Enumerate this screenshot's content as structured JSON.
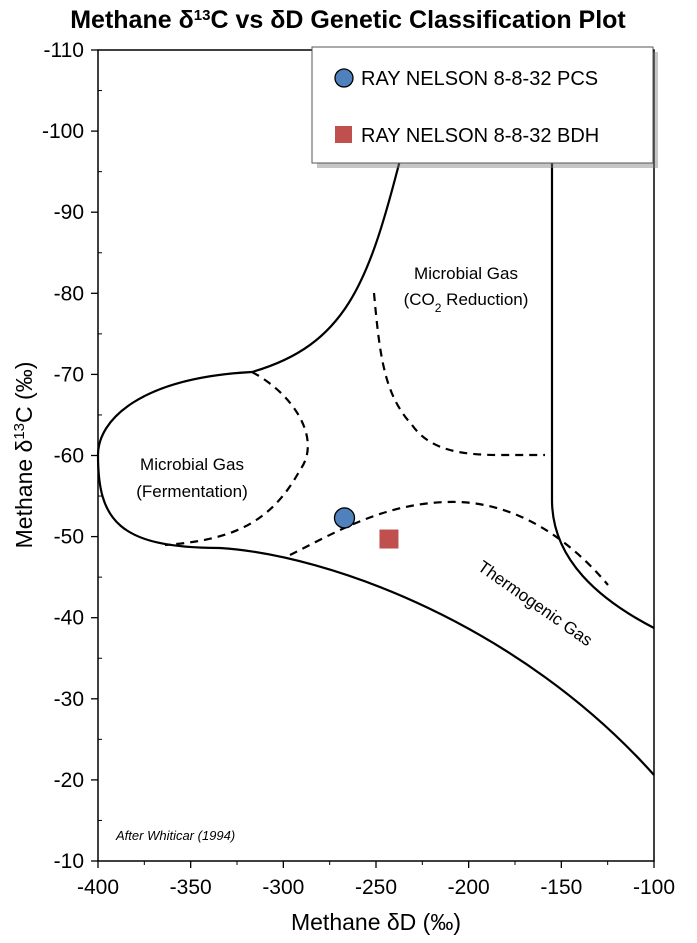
{
  "chart_data": {
    "type": "scatter",
    "title_main": "Methane ",
    "title_delta": "δ",
    "title_sup": "13",
    "title_rest": "C vs ",
    "title_delta2": "δ",
    "title_end": "D Genetic Classification Plot",
    "xlabel": "Methane δD (‰)",
    "ylabel_pre": "Methane  δ",
    "ylabel_sup": "13",
    "ylabel_post": "C (‰)",
    "xlim": [
      -400,
      -100
    ],
    "ylim": [
      -10,
      -110
    ],
    "x_ticks": [
      "-400",
      "-350",
      "-300",
      "-250",
      "-200",
      "-150",
      "-100"
    ],
    "y_ticks": [
      "-10",
      "-20",
      "-30",
      "-40",
      "-50",
      "-60",
      "-70",
      "-80",
      "-90",
      "-100",
      "-110"
    ],
    "series": [
      {
        "name": "RAY NELSON 8-8-32 PCS",
        "marker": "circle",
        "color": "#4f81bd",
        "x": [
          -267
        ],
        "y": [
          -52.3
        ]
      },
      {
        "name": "RAY NELSON 8-8-32 BDH",
        "marker": "square",
        "color": "#c0504d",
        "x": [
          -243
        ],
        "y": [
          -49.7
        ]
      }
    ],
    "regions": {
      "co2_line1": "Microbial Gas",
      "co2_pre": "(CO",
      "co2_sub": "2",
      "co2_post": " Reduction)",
      "ferm_line1": "Microbial Gas",
      "ferm_line2": "(Fermentation)",
      "thermo": "Thermogenic Gas"
    },
    "credit": "After Whiticar (1994)",
    "legend_position": "top-right",
    "grid": false
  }
}
